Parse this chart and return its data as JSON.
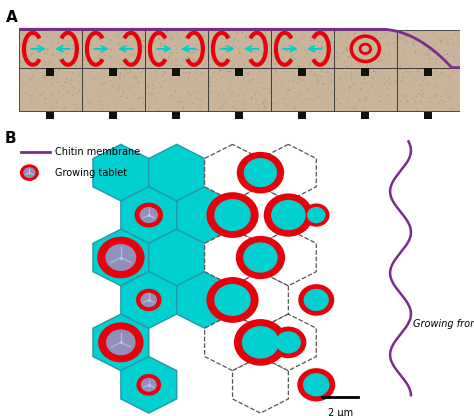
{
  "bg_color": "#ffffff",
  "panel_A": {
    "label": "A",
    "tablet_color": "#c8b49a",
    "membrane_color": "#7b2d8b",
    "red_ring_color": "#e8000a",
    "arrow_color": "#00cccc",
    "black_square_color": "#111111"
  },
  "panel_B": {
    "label": "B",
    "hex_color": "#00d0d0",
    "hex_border_solid": "#2299aa",
    "hex_border_dashed": "#555555",
    "red_ring_color": "#e8000a",
    "inner_cyan": "#00d0d0",
    "inner_purple": "#9090bb",
    "membrane_color": "#7b2d8b",
    "legend_text1": "Chitin membrane",
    "legend_text2": "Growing tablet",
    "scale_bar_text": "2 μm",
    "growing_front_text": "Growing front"
  }
}
